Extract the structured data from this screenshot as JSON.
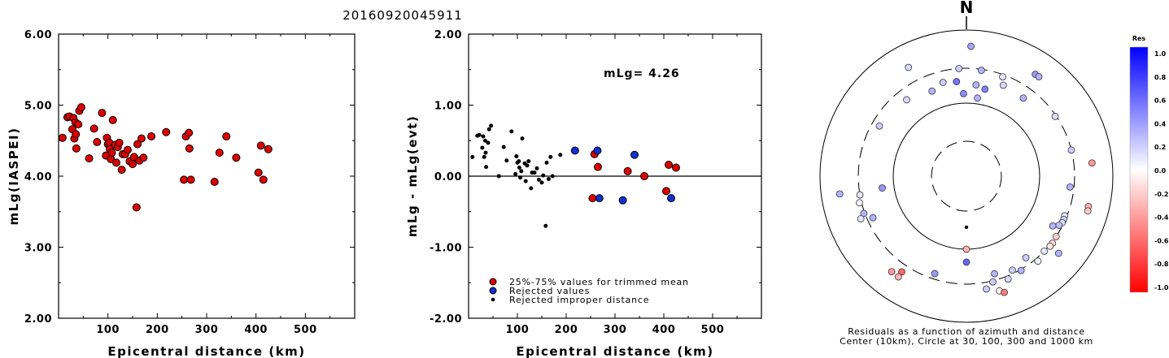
{
  "title": "20160920045911",
  "chart_data": [
    {
      "type": "scatter",
      "xlabel": "Epicentral distance (km)",
      "ylabel": "mLg(IASPEI)",
      "xlim": [
        0,
        600
      ],
      "ylim": [
        2,
        6
      ],
      "xticks": [
        "100",
        "200",
        "300",
        "400",
        "500"
      ],
      "yticks": [
        "2.00",
        "3.00",
        "4.00",
        "5.00",
        "6.00"
      ],
      "grid": false,
      "series": [
        {
          "color": "#dd0000",
          "points": [
            [
              8,
              4.54
            ],
            [
              18,
              4.83
            ],
            [
              22,
              4.84
            ],
            [
              28,
              4.66
            ],
            [
              30,
              4.82
            ],
            [
              32,
              4.53
            ],
            [
              34,
              4.76
            ],
            [
              35,
              4.59
            ],
            [
              36,
              4.39
            ],
            [
              40,
              4.73
            ],
            [
              42,
              4.92
            ],
            [
              46,
              4.97
            ],
            [
              62,
              4.25
            ],
            [
              72,
              4.67
            ],
            [
              78,
              4.48
            ],
            [
              88,
              4.89
            ],
            [
              96,
              4.29
            ],
            [
              98,
              4.54
            ],
            [
              100,
              4.45
            ],
            [
              103,
              4.47
            ],
            [
              104,
              4.38
            ],
            [
              106,
              4.24
            ],
            [
              108,
              4.33
            ],
            [
              110,
              4.79
            ],
            [
              115,
              4.44
            ],
            [
              117,
              4.19
            ],
            [
              120,
              4.41
            ],
            [
              123,
              4.47
            ],
            [
              128,
              4.09
            ],
            [
              130,
              4.31
            ],
            [
              135,
              4.31
            ],
            [
              140,
              4.37
            ],
            [
              144,
              4.21
            ],
            [
              150,
              4.17
            ],
            [
              153,
              4.27
            ],
            [
              158,
              3.56
            ],
            [
              160,
              4.45
            ],
            [
              164,
              4.22
            ],
            [
              168,
              4.53
            ],
            [
              172,
              4.26
            ],
            [
              188,
              4.56
            ],
            [
              218,
              4.62
            ],
            [
              254,
              3.95
            ],
            [
              258,
              4.56
            ],
            [
              264,
              4.61
            ],
            [
              265,
              4.39
            ],
            [
              268,
              3.95
            ],
            [
              316,
              3.92
            ],
            [
              326,
              4.33
            ],
            [
              340,
              4.56
            ],
            [
              360,
              4.26
            ],
            [
              405,
              4.05
            ],
            [
              410,
              4.43
            ],
            [
              415,
              3.95
            ],
            [
              425,
              4.38
            ]
          ]
        }
      ]
    },
    {
      "type": "scatter",
      "xlabel": "Epicentral distance (km)",
      "ylabel": "mLg - mLg(evt)",
      "xlim": [
        0,
        600
      ],
      "ylim": [
        -2,
        2
      ],
      "xticks": [
        "100",
        "200",
        "300",
        "400",
        "500"
      ],
      "yticks": [
        "-2.00",
        "-1.00",
        "0.00",
        "1.00",
        "2.00"
      ],
      "annotation": "mLg= 4.26",
      "grid": false,
      "legend_position": "bottom-left",
      "series": [
        {
          "name": "25%-75% values for trimmed mean",
          "color": "#dd0000",
          "marker": "circle",
          "points": [
            [
              254,
              -0.31
            ],
            [
              258,
              0.31
            ],
            [
              265,
              0.13
            ],
            [
              326,
              0.07
            ],
            [
              360,
              0.0
            ],
            [
              405,
              -0.21
            ],
            [
              410,
              0.16
            ],
            [
              425,
              0.12
            ]
          ]
        },
        {
          "name": "Rejected values",
          "color": "#1030d0",
          "marker": "circle",
          "points": [
            [
              218,
              0.36
            ],
            [
              264,
              0.36
            ],
            [
              268,
              -0.31
            ],
            [
              316,
              -0.34
            ],
            [
              340,
              0.3
            ],
            [
              415,
              -0.31
            ]
          ]
        },
        {
          "name": "Rejected improper distance",
          "color": "#000000",
          "marker": "dot",
          "points": [
            [
              8,
              0.27
            ],
            [
              18,
              0.57
            ],
            [
              22,
              0.58
            ],
            [
              28,
              0.4
            ],
            [
              30,
              0.56
            ],
            [
              32,
              0.27
            ],
            [
              34,
              0.5
            ],
            [
              35,
              0.33
            ],
            [
              36,
              0.13
            ],
            [
              40,
              0.47
            ],
            [
              42,
              0.66
            ],
            [
              46,
              0.71
            ],
            [
              62,
              0.0
            ],
            [
              72,
              0.41
            ],
            [
              78,
              0.22
            ],
            [
              88,
              0.63
            ],
            [
              96,
              0.03
            ],
            [
              98,
              0.28
            ],
            [
              100,
              0.19
            ],
            [
              103,
              0.21
            ],
            [
              104,
              0.12
            ],
            [
              106,
              -0.02
            ],
            [
              108,
              0.07
            ],
            [
              110,
              0.53
            ],
            [
              115,
              0.18
            ],
            [
              117,
              -0.07
            ],
            [
              120,
              0.15
            ],
            [
              123,
              0.21
            ],
            [
              128,
              -0.17
            ],
            [
              130,
              0.05
            ],
            [
              135,
              0.05
            ],
            [
              140,
              0.11
            ],
            [
              144,
              -0.05
            ],
            [
              150,
              -0.09
            ],
            [
              153,
              0.01
            ],
            [
              158,
              -0.7
            ],
            [
              160,
              0.19
            ],
            [
              164,
              -0.04
            ],
            [
              168,
              0.27
            ],
            [
              172,
              0.0
            ],
            [
              188,
              0.3
            ]
          ]
        }
      ]
    },
    {
      "type": "polar-scatter",
      "north_label": "N",
      "caption": [
        "Residuals as a function of azimuth and distance",
        "Center (10km), Circle at 30, 100, 300 and 1000 km"
      ],
      "ring_distances_km": [
        30,
        100,
        300,
        1000
      ],
      "colorbar": {
        "title": "Res",
        "labels": [
          "1.0",
          "0.8",
          "0.6",
          "0.4",
          "0.2",
          "0.0",
          "-0.2",
          "-0.4",
          "-0.6",
          "-0.8",
          "-1.0"
        ],
        "max_color": "#0000ff",
        "mid_color": "#ffffff",
        "min_color": "#ff0000"
      },
      "points": [
        {
          "az": 180,
          "dist": 50,
          "res": -0.05,
          "marker": "dot"
        },
        {
          "az": 180,
          "dist": 100,
          "res": -0.3
        },
        {
          "az": 356,
          "dist": 300,
          "res": 0.2
        },
        {
          "az": 8,
          "dist": 290,
          "res": 0.3
        },
        {
          "az": 20,
          "dist": 280,
          "res": 0.1
        },
        {
          "az": 338,
          "dist": 180,
          "res": 0.3
        },
        {
          "az": 346,
          "dist": 210,
          "res": 0.2
        },
        {
          "az": 354,
          "dist": 200,
          "res": 0.55
        },
        {
          "az": 6,
          "dist": 180,
          "res": 0.3
        },
        {
          "az": 12,
          "dist": 165,
          "res": 0.5
        },
        {
          "az": 22,
          "dist": 220,
          "res": 0.15
        },
        {
          "az": 36,
          "dist": 210,
          "res": 0.3
        },
        {
          "az": 358,
          "dist": 135,
          "res": 0.45
        },
        {
          "az": 8,
          "dist": 120,
          "res": 0.3
        },
        {
          "az": 322,
          "dist": 212,
          "res": 0.15
        },
        {
          "az": 300,
          "dist": 236,
          "res": 0.2
        },
        {
          "az": 262,
          "dist": 145,
          "res": 0.4
        },
        {
          "az": 180,
          "dist": 150,
          "res": 0.6
        },
        {
          "az": 56,
          "dist": 290,
          "res": 0.15
        },
        {
          "az": 76,
          "dist": 300,
          "res": 0.2
        },
        {
          "az": 96,
          "dist": 265,
          "res": 0.3
        },
        {
          "az": 84,
          "dist": 530,
          "res": -0.4
        },
        {
          "az": 104,
          "dist": 520,
          "res": -0.3
        },
        {
          "az": 106,
          "dist": 530,
          "res": -0.2
        },
        {
          "az": 112,
          "dist": 280,
          "res": 0.1
        },
        {
          "az": 114,
          "dist": 285,
          "res": 0.2
        },
        {
          "az": 116,
          "dist": 285,
          "res": 0.15
        },
        {
          "az": 118,
          "dist": 270,
          "res": 0.25
        },
        {
          "az": 124,
          "dist": 300,
          "res": -0.2
        },
        {
          "az": 128,
          "dist": 310,
          "res": -0.15
        },
        {
          "az": 130,
          "dist": 310,
          "res": -0.1
        },
        {
          "az": 134,
          "dist": 300,
          "res": 0.1
        },
        {
          "az": 120,
          "dist": 230,
          "res": 0.3
        },
        {
          "az": 140,
          "dist": 330,
          "res": 0.05
        },
        {
          "az": 144,
          "dist": 240,
          "res": 0.2
        },
        {
          "az": 150,
          "dist": 310,
          "res": 0.3
        },
        {
          "az": 154,
          "dist": 270,
          "res": 0.2
        },
        {
          "az": 158,
          "dist": 330,
          "res": 0.15
        },
        {
          "az": 164,
          "dist": 245,
          "res": 0.3
        },
        {
          "az": 166,
          "dist": 310,
          "res": 0.2
        },
        {
          "az": 170,
          "dist": 370,
          "res": 0.2
        },
        {
          "az": 164,
          "dist": 430,
          "res": -0.05
        },
        {
          "az": 162,
          "dist": 470,
          "res": -0.5
        },
        {
          "az": 130,
          "dist": 440,
          "res": 0.3
        },
        {
          "az": 198,
          "dist": 252,
          "res": 0.4
        },
        {
          "az": 214,
          "dist": 380,
          "res": -0.6
        },
        {
          "az": 218,
          "dist": 455,
          "res": -0.4
        },
        {
          "az": 214,
          "dist": 460,
          "res": -0.3
        },
        {
          "az": 260,
          "dist": 300,
          "res": 0.1
        },
        {
          "az": 256,
          "dist": 320,
          "res": 0.05
        },
        {
          "az": 250,
          "dist": 310,
          "res": 0.3
        },
        {
          "az": 248,
          "dist": 360,
          "res": 0.1
        },
        {
          "az": 262,
          "dist": 560,
          "res": 0.3
        },
        {
          "az": 332,
          "dist": 485,
          "res": 0.15
        },
        {
          "az": 34,
          "dist": 480,
          "res": 0.4
        },
        {
          "az": 36,
          "dist": 482,
          "res": 0.3
        },
        {
          "az": 2,
          "dist": 600,
          "res": 0.35
        },
        {
          "az": 246,
          "dist": 250,
          "res": 0.3
        }
      ]
    }
  ]
}
